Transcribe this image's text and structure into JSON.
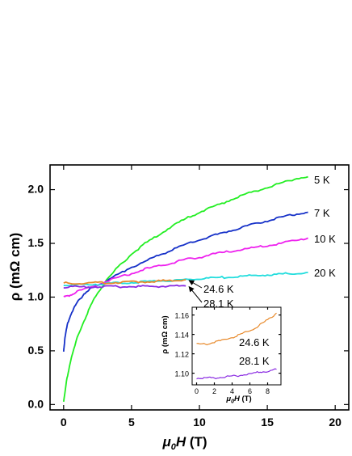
{
  "chart_data": [
    {
      "type": "line",
      "title": "",
      "xlabel": {
        "symbol": "μ",
        "sub": "0",
        "var": "H",
        "unit": " (T)"
      },
      "ylabel": "ρ (mΩ cm)",
      "xlim": [
        -1,
        21
      ],
      "ylim": [
        -0.05,
        2.23
      ],
      "xticks": [
        0,
        5,
        10,
        15,
        20
      ],
      "yticks": [
        0.0,
        0.5,
        1.0,
        1.5,
        2.0
      ],
      "xtick_labels": [
        "0",
        "5",
        "10",
        "15",
        "20"
      ],
      "ytick_labels": [
        "0.0",
        "0.5",
        "1.0",
        "1.5",
        "2.0"
      ],
      "grid": false,
      "legend": "none",
      "series": [
        {
          "name": "5 K",
          "color": "#22ee22",
          "x": [
            0.0,
            0.25,
            0.5,
            1.0,
            1.5,
            2.0,
            2.5,
            3.0,
            4.0,
            5.0,
            6.0,
            7.0,
            8.0,
            9.0,
            10.0,
            11.0,
            12.0,
            13.0,
            14.0,
            15.0,
            16.0,
            17.0,
            18.0
          ],
          "y": [
            0.02,
            0.25,
            0.4,
            0.62,
            0.78,
            0.92,
            1.04,
            1.13,
            1.28,
            1.4,
            1.5,
            1.58,
            1.66,
            1.73,
            1.79,
            1.84,
            1.89,
            1.94,
            1.98,
            2.02,
            2.06,
            2.1,
            2.12
          ]
        },
        {
          "name": "7 K",
          "color": "#1530c8",
          "x": [
            0.0,
            0.1,
            0.3,
            0.6,
            1.0,
            1.5,
            2.0,
            2.5,
            3.0,
            4.0,
            5.0,
            6.0,
            7.0,
            8.0,
            9.0,
            10.0,
            11.0,
            12.0,
            13.0,
            14.0,
            15.0,
            16.0,
            17.0,
            18.0
          ],
          "y": [
            0.5,
            0.62,
            0.76,
            0.86,
            0.95,
            1.03,
            1.08,
            1.11,
            1.14,
            1.21,
            1.28,
            1.33,
            1.39,
            1.44,
            1.49,
            1.53,
            1.57,
            1.61,
            1.64,
            1.68,
            1.71,
            1.74,
            1.77,
            1.79
          ]
        },
        {
          "name": "10 K",
          "color": "#ee22ee",
          "x": [
            0.0,
            0.5,
            1.0,
            2.0,
            3.0,
            4.0,
            5.0,
            6.0,
            7.0,
            8.0,
            9.0,
            10.0,
            11.0,
            12.0,
            13.0,
            14.0,
            15.0,
            16.0,
            17.0,
            18.0
          ],
          "y": [
            1.0,
            1.02,
            1.05,
            1.09,
            1.14,
            1.18,
            1.22,
            1.26,
            1.29,
            1.32,
            1.35,
            1.37,
            1.4,
            1.42,
            1.44,
            1.46,
            1.48,
            1.5,
            1.53,
            1.55
          ]
        },
        {
          "name": "20 K",
          "color": "#22dddd",
          "x": [
            0.0,
            1.0,
            2.0,
            3.0,
            4.0,
            5.0,
            6.0,
            7.0,
            8.0,
            9.0,
            10.0,
            11.0,
            12.0,
            13.0,
            14.0,
            15.0,
            16.0,
            17.0,
            18.0
          ],
          "y": [
            1.112,
            1.114,
            1.118,
            1.124,
            1.13,
            1.137,
            1.143,
            1.15,
            1.157,
            1.164,
            1.171,
            1.178,
            1.185,
            1.192,
            1.199,
            1.206,
            1.214,
            1.222,
            1.23
          ]
        },
        {
          "name": "24.6 K",
          "color": "#e8892a",
          "x": [
            0.0,
            1.0,
            2.0,
            3.0,
            4.0,
            5.0,
            6.0,
            7.0,
            8.0,
            9.0
          ],
          "y": [
            1.13,
            1.13,
            1.132,
            1.134,
            1.137,
            1.14,
            1.144,
            1.149,
            1.155,
            1.162
          ]
        },
        {
          "name": "28.1 K",
          "color": "#8a2be2",
          "x": [
            0.0,
            1.0,
            2.0,
            3.0,
            4.0,
            5.0,
            6.0,
            7.0,
            8.0,
            9.0
          ],
          "y": [
            1.095,
            1.095,
            1.095,
            1.096,
            1.097,
            1.098,
            1.099,
            1.101,
            1.102,
            1.104
          ]
        }
      ],
      "labels": [
        "5 K",
        "7 K",
        "10 K",
        "20 K",
        "24.6 K",
        "28.1 K"
      ]
    },
    {
      "type": "line",
      "role": "inset",
      "title": "",
      "xlabel": {
        "symbol": "μ",
        "sub": "0",
        "var": "H",
        "unit": " (T)"
      },
      "ylabel": "ρ (mΩ cm)",
      "xlim": [
        -0.5,
        9.5
      ],
      "ylim": [
        1.088,
        1.168
      ],
      "xticks": [
        0,
        2,
        4,
        6,
        8
      ],
      "yticks": [
        1.1,
        1.12,
        1.14,
        1.16
      ],
      "xtick_labels": [
        "0",
        "2",
        "4",
        "6",
        "8"
      ],
      "ytick_labels": [
        "1.10",
        "1.12",
        "1.14",
        "1.16"
      ],
      "grid": false,
      "legend": "none",
      "series": [
        {
          "name": "24.6 K",
          "color": "#e8892a",
          "x": [
            0.0,
            1.0,
            2.0,
            3.0,
            4.0,
            5.0,
            6.0,
            7.0,
            8.0,
            9.0
          ],
          "y": [
            1.13,
            1.13,
            1.132,
            1.134,
            1.137,
            1.14,
            1.144,
            1.149,
            1.155,
            1.162
          ]
        },
        {
          "name": "28.1 K",
          "color": "#8a2be2",
          "x": [
            0.0,
            1.0,
            2.0,
            3.0,
            4.0,
            5.0,
            6.0,
            7.0,
            8.0,
            9.0
          ],
          "y": [
            1.095,
            1.095,
            1.095,
            1.096,
            1.097,
            1.098,
            1.099,
            1.101,
            1.102,
            1.104
          ]
        }
      ],
      "labels": [
        "24.6 K",
        "28.1 K"
      ]
    }
  ]
}
